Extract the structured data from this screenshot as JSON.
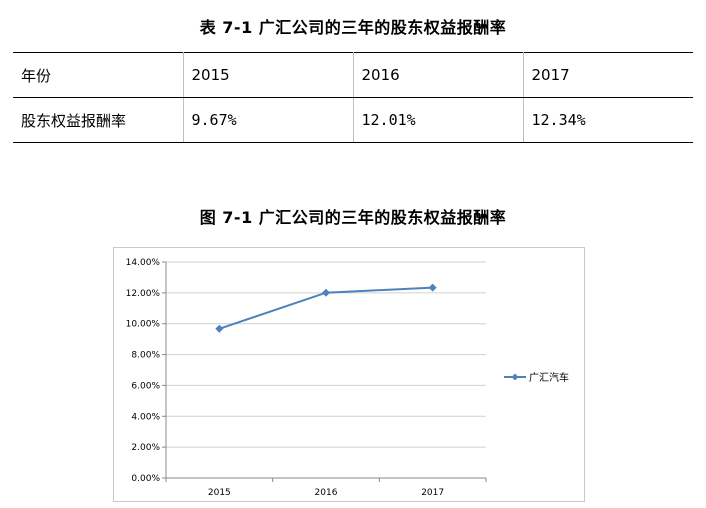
{
  "table": {
    "title": "表 7-1 广汇公司的三年的股东权益报酬率",
    "header": [
      "年份",
      "2015",
      "2016",
      "2017"
    ],
    "row": [
      "股东权益报酬率",
      "9.67%",
      "12.01%",
      "12.34%"
    ]
  },
  "chart_title": "图 7-1 广汇公司的三年的股东权益报酬率",
  "chart_data": {
    "type": "line",
    "categories": [
      "2015",
      "2016",
      "2017"
    ],
    "series": [
      {
        "name": "广汇汽车",
        "values": [
          9.67,
          12.01,
          12.34
        ],
        "color": "#4f81bd"
      }
    ],
    "y_ticks": [
      "14.00%",
      "12.00%",
      "10.00%",
      "8.00%",
      "6.00%",
      "4.00%",
      "2.00%",
      "0.00%"
    ],
    "ylim": [
      0,
      14
    ],
    "grid": true,
    "legend_position": "right"
  }
}
